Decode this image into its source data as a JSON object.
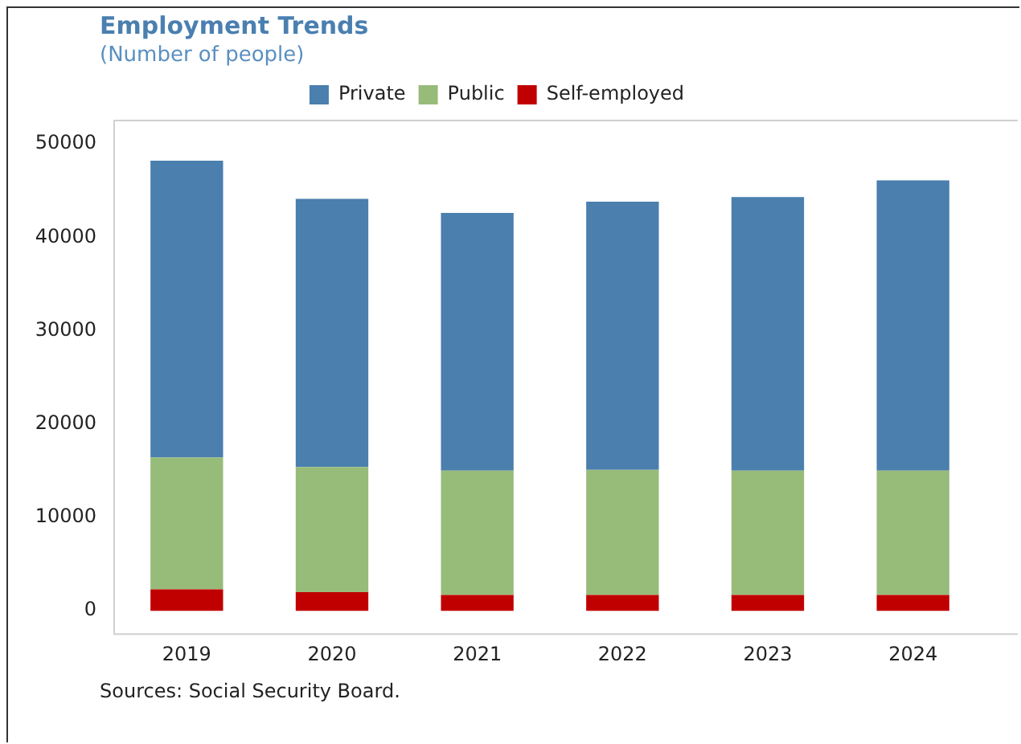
{
  "chart_data": {
    "type": "bar",
    "title": "Employment Trends",
    "subtitle": "(Number of people)",
    "annotations": [
      "Sources: Social Security Board."
    ],
    "categories": [
      "2019",
      "2020",
      "2021",
      "2022",
      "2023",
      "2024"
    ],
    "series": [
      {
        "name": "Self-employed",
        "color": "#c00000",
        "values": [
          2300,
          2000,
          1700,
          1700,
          1700,
          1700
        ]
      },
      {
        "name": "Public",
        "color": "#97bb79",
        "values": [
          14100,
          13400,
          13300,
          13400,
          13300,
          13300
        ]
      },
      {
        "name": "Private",
        "color": "#4a7fae",
        "values": [
          31800,
          28700,
          27600,
          28700,
          29300,
          31100
        ]
      }
    ],
    "stacked": true,
    "ylim": [
      -2500,
      52500
    ],
    "yticks": [
      0,
      10000,
      20000,
      30000,
      40000,
      50000
    ],
    "grid": false,
    "legend": "top"
  }
}
